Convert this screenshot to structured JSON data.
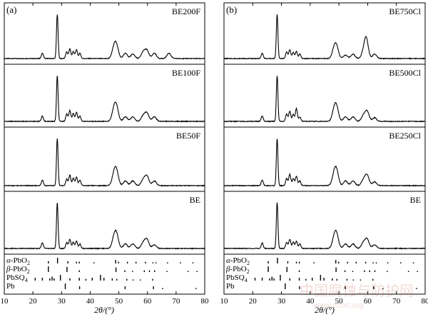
{
  "chart_data": {
    "type": "line",
    "xlabel": "2θ/(°)",
    "x_range": [
      10,
      80
    ],
    "x_ticks": [
      10,
      20,
      30,
      40,
      50,
      60,
      70,
      80
    ],
    "panels": [
      {
        "label": "(a)",
        "series": [
          {
            "name": "BE200F",
            "peaks": [
              [
                23.3,
                0.12
              ],
              [
                28.5,
                1.0
              ],
              [
                31.8,
                0.15
              ],
              [
                32.9,
                0.22
              ],
              [
                34.1,
                0.16
              ],
              [
                35.2,
                0.2
              ],
              [
                36.4,
                0.12
              ],
              [
                48.3,
                0.22
              ],
              [
                49.2,
                0.26
              ],
              [
                52.3,
                0.12
              ],
              [
                54.9,
                0.1
              ],
              [
                58.5,
                0.14
              ],
              [
                59.8,
                0.18
              ],
              [
                62.4,
                0.12
              ],
              [
                67.5,
                0.12
              ]
            ]
          },
          {
            "name": "BE100F",
            "peaks": [
              [
                23.3,
                0.12
              ],
              [
                28.5,
                1.0
              ],
              [
                31.8,
                0.16
              ],
              [
                32.9,
                0.24
              ],
              [
                34.1,
                0.17
              ],
              [
                35.2,
                0.2
              ],
              [
                36.4,
                0.12
              ],
              [
                48.3,
                0.24
              ],
              [
                49.2,
                0.28
              ],
              [
                52.3,
                0.1
              ],
              [
                54.9,
                0.1
              ],
              [
                58.5,
                0.12
              ],
              [
                59.8,
                0.18
              ],
              [
                62.4,
                0.1
              ]
            ]
          },
          {
            "name": "BE50F",
            "peaks": [
              [
                23.3,
                0.12
              ],
              [
                28.5,
                1.0
              ],
              [
                31.8,
                0.14
              ],
              [
                32.9,
                0.22
              ],
              [
                34.1,
                0.16
              ],
              [
                35.2,
                0.18
              ],
              [
                36.4,
                0.12
              ],
              [
                48.3,
                0.22
              ],
              [
                49.2,
                0.28
              ],
              [
                52.3,
                0.1
              ],
              [
                54.9,
                0.1
              ],
              [
                58.5,
                0.12
              ],
              [
                59.8,
                0.2
              ],
              [
                62.4,
                0.1
              ]
            ]
          },
          {
            "name": "BE",
            "peaks": [
              [
                23.3,
                0.12
              ],
              [
                28.5,
                1.0
              ],
              [
                31.8,
                0.13
              ],
              [
                32.9,
                0.2
              ],
              [
                34.1,
                0.14
              ],
              [
                35.2,
                0.16
              ],
              [
                36.4,
                0.1
              ],
              [
                48.3,
                0.2
              ],
              [
                49.2,
                0.28
              ],
              [
                52.3,
                0.1
              ],
              [
                54.9,
                0.1
              ],
              [
                58.5,
                0.12
              ],
              [
                59.8,
                0.2
              ],
              [
                62.4,
                0.08
              ]
            ]
          }
        ]
      },
      {
        "label": "(b)",
        "series": [
          {
            "name": "BE750Cl",
            "peaks": [
              [
                23.3,
                0.12
              ],
              [
                28.5,
                1.0
              ],
              [
                31.8,
                0.15
              ],
              [
                32.9,
                0.2
              ],
              [
                34.1,
                0.14
              ],
              [
                35.2,
                0.16
              ],
              [
                36.4,
                0.1
              ],
              [
                48.3,
                0.2
              ],
              [
                49.2,
                0.24
              ],
              [
                52.3,
                0.08
              ],
              [
                54.9,
                0.1
              ],
              [
                58.5,
                0.12
              ],
              [
                59.5,
                0.45
              ],
              [
                62.4,
                0.1
              ]
            ]
          },
          {
            "name": "BE500Cl",
            "peaks": [
              [
                23.3,
                0.12
              ],
              [
                28.5,
                1.0
              ],
              [
                31.8,
                0.16
              ],
              [
                32.9,
                0.22
              ],
              [
                34.1,
                0.15
              ],
              [
                35.2,
                0.28
              ],
              [
                36.4,
                0.1
              ],
              [
                48.3,
                0.22
              ],
              [
                49.2,
                0.28
              ],
              [
                52.3,
                0.1
              ],
              [
                54.9,
                0.1
              ],
              [
                58.5,
                0.12
              ],
              [
                59.8,
                0.22
              ],
              [
                62.4,
                0.08
              ]
            ]
          },
          {
            "name": "BE250Cl",
            "peaks": [
              [
                23.3,
                0.12
              ],
              [
                28.5,
                1.0
              ],
              [
                31.8,
                0.15
              ],
              [
                32.9,
                0.24
              ],
              [
                34.1,
                0.15
              ],
              [
                35.2,
                0.2
              ],
              [
                36.4,
                0.1
              ],
              [
                48.3,
                0.22
              ],
              [
                49.2,
                0.28
              ],
              [
                52.3,
                0.1
              ],
              [
                54.9,
                0.1
              ],
              [
                58.5,
                0.12
              ],
              [
                59.8,
                0.22
              ],
              [
                62.4,
                0.08
              ]
            ]
          },
          {
            "name": "BE",
            "peaks": [
              [
                23.3,
                0.12
              ],
              [
                28.5,
                1.0
              ],
              [
                31.8,
                0.13
              ],
              [
                32.9,
                0.2
              ],
              [
                34.1,
                0.14
              ],
              [
                35.2,
                0.16
              ],
              [
                36.4,
                0.1
              ],
              [
                48.3,
                0.2
              ],
              [
                49.2,
                0.28
              ],
              [
                52.3,
                0.1
              ],
              [
                54.9,
                0.1
              ],
              [
                58.5,
                0.12
              ],
              [
                59.8,
                0.2
              ],
              [
                62.4,
                0.08
              ]
            ]
          }
        ]
      }
    ],
    "reference_phases": [
      {
        "name": "α-PbO",
        "sub": "2",
        "sticks": [
          [
            25.4,
            0.4
          ],
          [
            28.6,
            1.0
          ],
          [
            32.2,
            0.4
          ],
          [
            35.2,
            0.3
          ],
          [
            36.2,
            0.3
          ],
          [
            41.3,
            0.2
          ],
          [
            48.9,
            0.6
          ],
          [
            49.9,
            0.3
          ],
          [
            53.0,
            0.3
          ],
          [
            56.0,
            0.3
          ],
          [
            59.3,
            0.3
          ],
          [
            61.9,
            0.2
          ],
          [
            63.0,
            0.2
          ],
          [
            67.0,
            0.2
          ],
          [
            71.5,
            0.2
          ],
          [
            75.9,
            0.2
          ]
        ]
      },
      {
        "name": "β-PbO",
        "sub": "2",
        "sticks": [
          [
            25.4,
            1.0
          ],
          [
            31.9,
            0.9
          ],
          [
            36.2,
            0.3
          ],
          [
            49.0,
            0.8
          ],
          [
            52.1,
            0.3
          ],
          [
            54.8,
            0.2
          ],
          [
            58.9,
            0.3
          ],
          [
            60.7,
            0.3
          ],
          [
            62.5,
            0.3
          ],
          [
            66.8,
            0.2
          ],
          [
            74.2,
            0.2
          ],
          [
            77.3,
            0.2
          ]
        ]
      },
      {
        "name": "PbSO",
        "sub": "4",
        "sticks": [
          [
            16.4,
            0.2
          ],
          [
            20.8,
            0.5
          ],
          [
            23.3,
            0.5
          ],
          [
            25.9,
            0.4
          ],
          [
            26.7,
            0.7
          ],
          [
            27.4,
            0.4
          ],
          [
            29.6,
            1.0
          ],
          [
            32.9,
            0.4
          ],
          [
            36.2,
            0.5
          ],
          [
            38.5,
            0.3
          ],
          [
            40.7,
            0.5
          ],
          [
            43.6,
            1.0
          ],
          [
            44.8,
            0.5
          ],
          [
            47.7,
            0.4
          ],
          [
            49.3,
            0.3
          ],
          [
            52.8,
            0.3
          ],
          [
            55.0,
            0.2
          ],
          [
            57.5,
            0.2
          ],
          [
            61.8,
            0.3
          ]
        ]
      },
      {
        "name": "Pb",
        "sub": "",
        "sticks": [
          [
            31.3,
            1.0
          ],
          [
            36.3,
            0.5
          ],
          [
            52.2,
            0.5
          ],
          [
            62.1,
            0.5
          ],
          [
            65.3,
            0.2
          ],
          [
            77.0,
            0.2
          ]
        ]
      }
    ]
  },
  "watermark": {
    "line1": "中国腐蚀与防护网",
    "line2": "www.ecorr.org",
    "line3": "中国腐蚀与防护网 www.ecorr.org"
  }
}
